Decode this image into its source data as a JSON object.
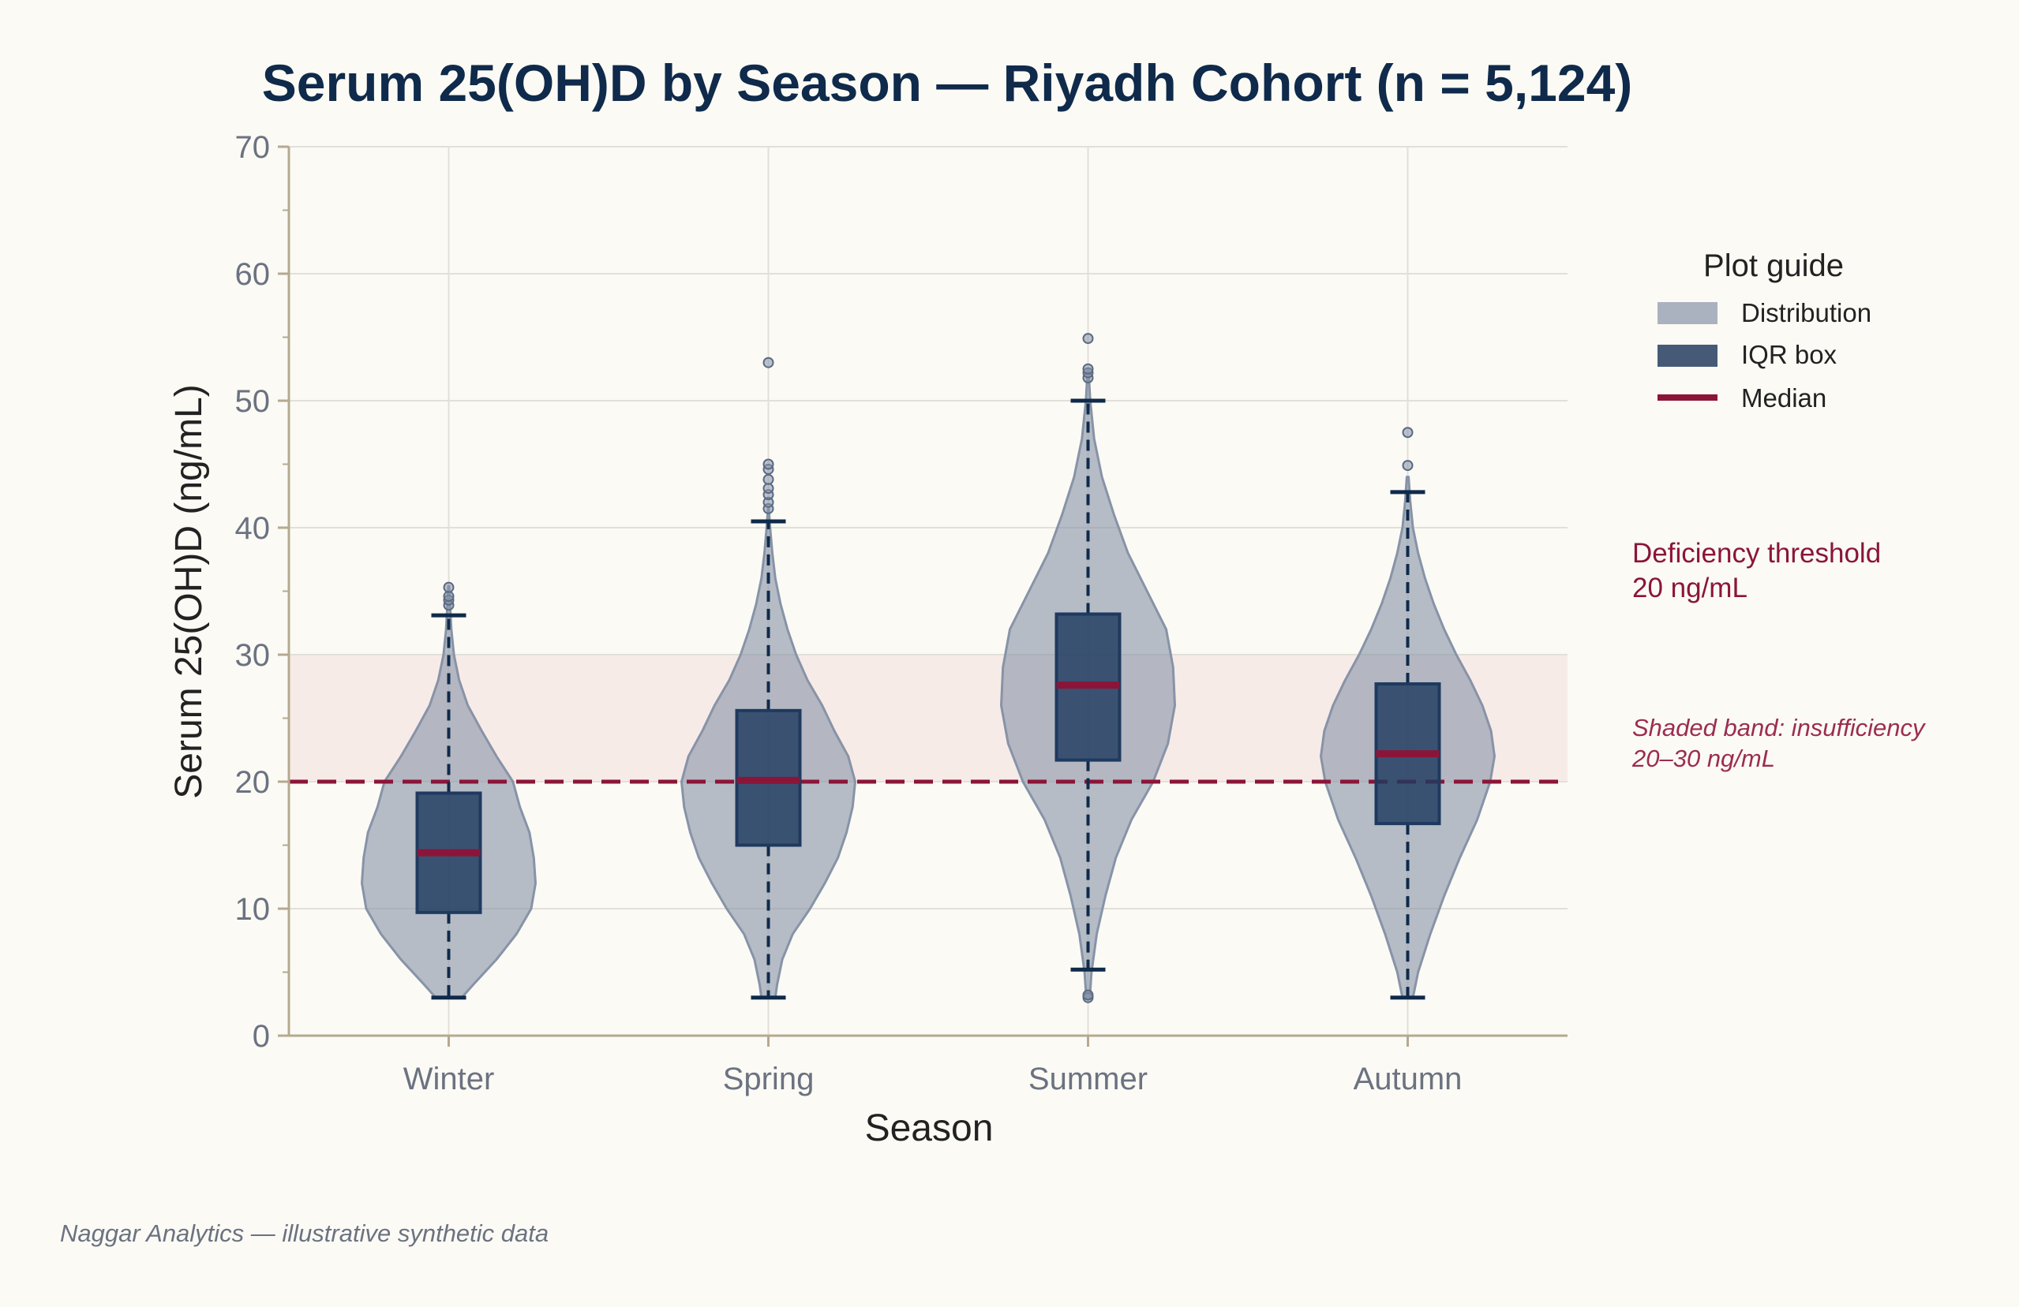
{
  "chart_data": {
    "type": "violin",
    "title": "Serum 25(OH)D by Season — Riyadh Cohort (n = 5,124)",
    "xlabel": "Season",
    "ylabel": "Serum 25(OH)D (ng/mL)",
    "ylim": [
      0,
      70
    ],
    "yticks": [
      "0",
      "10",
      "20",
      "30",
      "40",
      "50",
      "60",
      "70"
    ],
    "categories": [
      "Winter",
      "Spring",
      "Summer",
      "Autumn"
    ],
    "grid": true,
    "legend": {
      "title": "Plot guide",
      "placement": "right",
      "items": [
        {
          "label": "Distribution",
          "kind": "patch",
          "color": "#aab2bf"
        },
        {
          "label": "IQR box",
          "kind": "patch",
          "color": "#465a78"
        },
        {
          "label": "Median",
          "kind": "line",
          "color": "#8b1538"
        }
      ]
    },
    "series": [
      {
        "category": "Winter",
        "q1": 9.7,
        "median": 14.4,
        "q3": 19.1,
        "whisker_low": 3.0,
        "whisker_high": 33.1,
        "outliers": [
          33.9,
          34.3,
          34.6,
          35.3
        ],
        "density": [
          [
            3.0,
            0.15
          ],
          [
            4.0,
            0.28
          ],
          [
            6.0,
            0.55
          ],
          [
            8.0,
            0.78
          ],
          [
            10.0,
            0.95
          ],
          [
            12.0,
            1.0
          ],
          [
            14.0,
            0.98
          ],
          [
            16.0,
            0.93
          ],
          [
            18.0,
            0.82
          ],
          [
            20.0,
            0.74
          ],
          [
            22.0,
            0.55
          ],
          [
            24.0,
            0.38
          ],
          [
            26.0,
            0.22
          ],
          [
            28.0,
            0.12
          ],
          [
            30.0,
            0.06
          ],
          [
            32.0,
            0.03
          ],
          [
            34.0,
            0.015
          ],
          [
            35.4,
            0.005
          ]
        ]
      },
      {
        "category": "Spring",
        "q1": 15.0,
        "median": 20.1,
        "q3": 25.6,
        "whisker_low": 3.0,
        "whisker_high": 40.5,
        "outliers": [
          41.5,
          42.0,
          42.6,
          43.1,
          43.8,
          44.6,
          45.0,
          53.0
        ],
        "density": [
          [
            3.0,
            0.08
          ],
          [
            4.0,
            0.1
          ],
          [
            6.0,
            0.16
          ],
          [
            8.0,
            0.28
          ],
          [
            10.0,
            0.48
          ],
          [
            12.0,
            0.65
          ],
          [
            14.0,
            0.8
          ],
          [
            16.0,
            0.9
          ],
          [
            18.0,
            0.97
          ],
          [
            20.0,
            1.0
          ],
          [
            22.0,
            0.92
          ],
          [
            24.0,
            0.76
          ],
          [
            26.0,
            0.62
          ],
          [
            28.0,
            0.45
          ],
          [
            30.0,
            0.32
          ],
          [
            32.0,
            0.22
          ],
          [
            34.0,
            0.14
          ],
          [
            36.0,
            0.08
          ],
          [
            38.0,
            0.045
          ],
          [
            40.0,
            0.02
          ],
          [
            41.5,
            0.005
          ]
        ]
      },
      {
        "category": "Summer",
        "q1": 21.7,
        "median": 27.6,
        "q3": 33.2,
        "whisker_low": 5.2,
        "whisker_high": 50.0,
        "outliers": [
          3.0,
          3.2,
          51.8,
          52.2,
          52.5,
          54.9
        ],
        "density": [
          [
            3.0,
            0.02
          ],
          [
            5.0,
            0.04
          ],
          [
            8.0,
            0.1
          ],
          [
            11.0,
            0.2
          ],
          [
            14.0,
            0.32
          ],
          [
            17.0,
            0.5
          ],
          [
            20.0,
            0.75
          ],
          [
            23.0,
            0.92
          ],
          [
            26.0,
            1.0
          ],
          [
            29.0,
            0.98
          ],
          [
            32.0,
            0.9
          ],
          [
            35.0,
            0.68
          ],
          [
            38.0,
            0.46
          ],
          [
            41.0,
            0.3
          ],
          [
            44.0,
            0.16
          ],
          [
            47.0,
            0.07
          ],
          [
            50.0,
            0.025
          ],
          [
            52.5,
            0.005
          ]
        ]
      },
      {
        "category": "Autumn",
        "q1": 16.7,
        "median": 22.2,
        "q3": 27.7,
        "whisker_low": 3.0,
        "whisker_high": 42.8,
        "outliers": [
          44.9,
          47.5
        ],
        "density": [
          [
            3.0,
            0.06
          ],
          [
            5.0,
            0.12
          ],
          [
            8.0,
            0.26
          ],
          [
            11.0,
            0.42
          ],
          [
            14.0,
            0.6
          ],
          [
            17.0,
            0.8
          ],
          [
            20.0,
            0.95
          ],
          [
            22.0,
            1.0
          ],
          [
            24.0,
            0.96
          ],
          [
            26.0,
            0.86
          ],
          [
            28.0,
            0.72
          ],
          [
            30.0,
            0.56
          ],
          [
            32.0,
            0.42
          ],
          [
            34.0,
            0.3
          ],
          [
            36.0,
            0.2
          ],
          [
            38.0,
            0.12
          ],
          [
            40.0,
            0.06
          ],
          [
            42.0,
            0.03
          ],
          [
            44.0,
            0.01
          ]
        ]
      }
    ],
    "threshold": {
      "value": 20,
      "label_line1": "Deficiency threshold",
      "label_line2": "20 ng/mL",
      "color": "#8b1538"
    },
    "band": {
      "low": 20,
      "high": 30,
      "label_line1": "Shaded band: insufficiency",
      "label_line2": "20–30 ng/mL",
      "color": "#f2d9d9"
    },
    "colors": {
      "violin": "#8793a7",
      "box": "#1f3a5f",
      "whisker": "#0f2a4a",
      "median": "#8b1538",
      "grid": "#e2e0d8",
      "axis": "#b5a98f"
    }
  },
  "footer": {
    "credit": "Naggar Analytics — illustrative synthetic data"
  }
}
